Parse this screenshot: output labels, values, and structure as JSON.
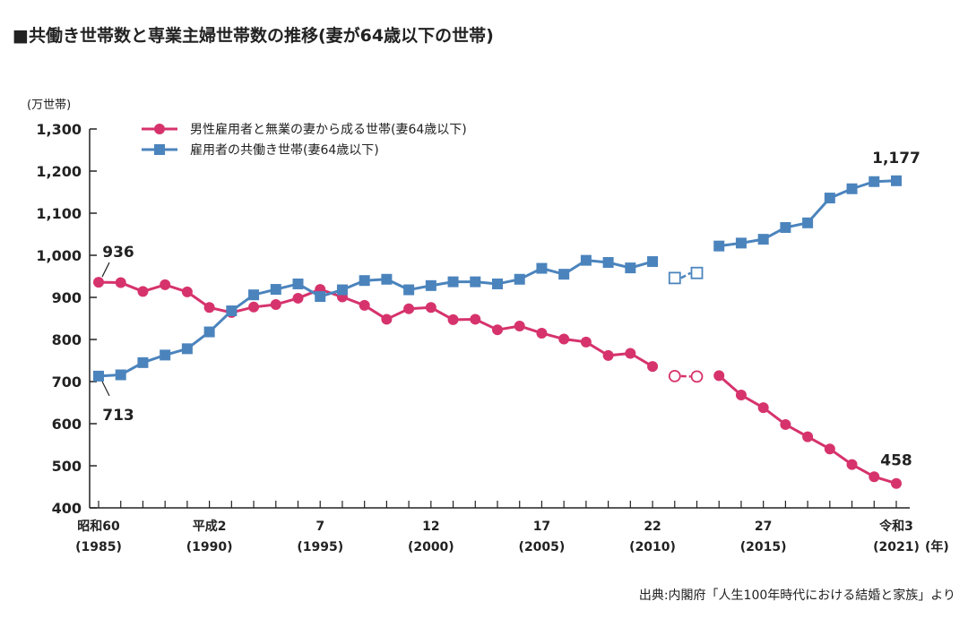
{
  "colors": {
    "husband_only": "#d6336c",
    "dual_income": "#4b84bd",
    "axis": "#222222"
  },
  "chart_data": {
    "type": "line",
    "title": "■共働き世帯数と専業主婦世帯数の推移(妻が64歳以下の世帯)",
    "ylabel": "(万世帯)",
    "ylim": [
      400,
      1300
    ],
    "yticks": [
      400,
      500,
      600,
      700,
      800,
      900,
      1000,
      1100,
      1200,
      1300
    ],
    "ytick_labels": [
      "400",
      "500",
      "600",
      "700",
      "800",
      "900",
      "1,000",
      "1,100",
      "1,200",
      "1,300"
    ],
    "x": [
      1985,
      1986,
      1987,
      1988,
      1989,
      1990,
      1991,
      1992,
      1993,
      1994,
      1995,
      1996,
      1997,
      1998,
      1999,
      2000,
      2001,
      2002,
      2003,
      2004,
      2005,
      2006,
      2007,
      2008,
      2009,
      2010,
      2011,
      2012,
      2013,
      2014,
      2015,
      2016,
      2017,
      2018,
      2019,
      2020,
      2021
    ],
    "xlim": [
      1985,
      2021
    ],
    "xticks": [
      {
        "x": 1985,
        "line1": "昭和60",
        "line2": "(1985)"
      },
      {
        "x": 1990,
        "line1": "平成2",
        "line2": "(1990)"
      },
      {
        "x": 1995,
        "line1": "7",
        "line2": "(1995)"
      },
      {
        "x": 2000,
        "line1": "12",
        "line2": "(2000)"
      },
      {
        "x": 2005,
        "line1": "17",
        "line2": "(2005)"
      },
      {
        "x": 2010,
        "line1": "22",
        "line2": "(2010)"
      },
      {
        "x": 2015,
        "line1": "27",
        "line2": "(2015)"
      },
      {
        "x": 2021,
        "line1": "令和3",
        "line2": "(2021)"
      }
    ],
    "x_unit": "(年)",
    "series": [
      {
        "key": "husband_only",
        "name": "男性雇用者と無業の妻から成る世帯(妻64歳以下)",
        "marker": "circle",
        "values": [
          936,
          935,
          914,
          930,
          913,
          876,
          864,
          877,
          883,
          898,
          919,
          901,
          881,
          848,
          873,
          876,
          847,
          848,
          823,
          832,
          815,
          801,
          794,
          762,
          767,
          736,
          713,
          712,
          714,
          668,
          638,
          598,
          569,
          540,
          503,
          474,
          458
        ],
        "estimated_indices": [
          26,
          27
        ]
      },
      {
        "key": "dual_income",
        "name": "雇用者の共働き世帯(妻64歳以下)",
        "marker": "square",
        "values": [
          713,
          716,
          745,
          763,
          778,
          818,
          868,
          906,
          919,
          932,
          902,
          918,
          940,
          943,
          918,
          928,
          937,
          937,
          932,
          943,
          969,
          955,
          988,
          983,
          970,
          985,
          946,
          958,
          1022,
          1029,
          1038,
          1066,
          1077,
          1136,
          1158,
          1175,
          1177
        ],
        "estimated_indices": [
          26,
          27
        ]
      }
    ],
    "annotations": [
      {
        "series": "husband_only",
        "x": 1985,
        "label": "936"
      },
      {
        "series": "dual_income",
        "x": 1985,
        "label": "713"
      },
      {
        "series": "dual_income",
        "x": 2021,
        "label": "1,177"
      },
      {
        "series": "husband_only",
        "x": 2021,
        "label": "458"
      }
    ],
    "legend_position": "top-left",
    "source": "出典:内閣府「人生100年時代における結婚と家族」より"
  }
}
